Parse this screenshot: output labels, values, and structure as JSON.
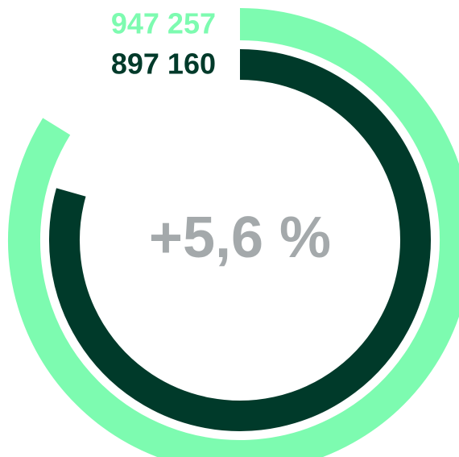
{
  "chart_data": {
    "type": "radial_bar",
    "annotation": "+5,6 %",
    "series": [
      {
        "name": null,
        "color": "#7dfbb0",
        "values": [
          947257
        ],
        "value_labels": [
          "947 257"
        ]
      },
      {
        "name": null,
        "color": "#003a2a",
        "values": [
          897160
        ],
        "value_labels": [
          "897 160"
        ]
      }
    ],
    "ylim": [
      0,
      1130000
    ]
  }
}
